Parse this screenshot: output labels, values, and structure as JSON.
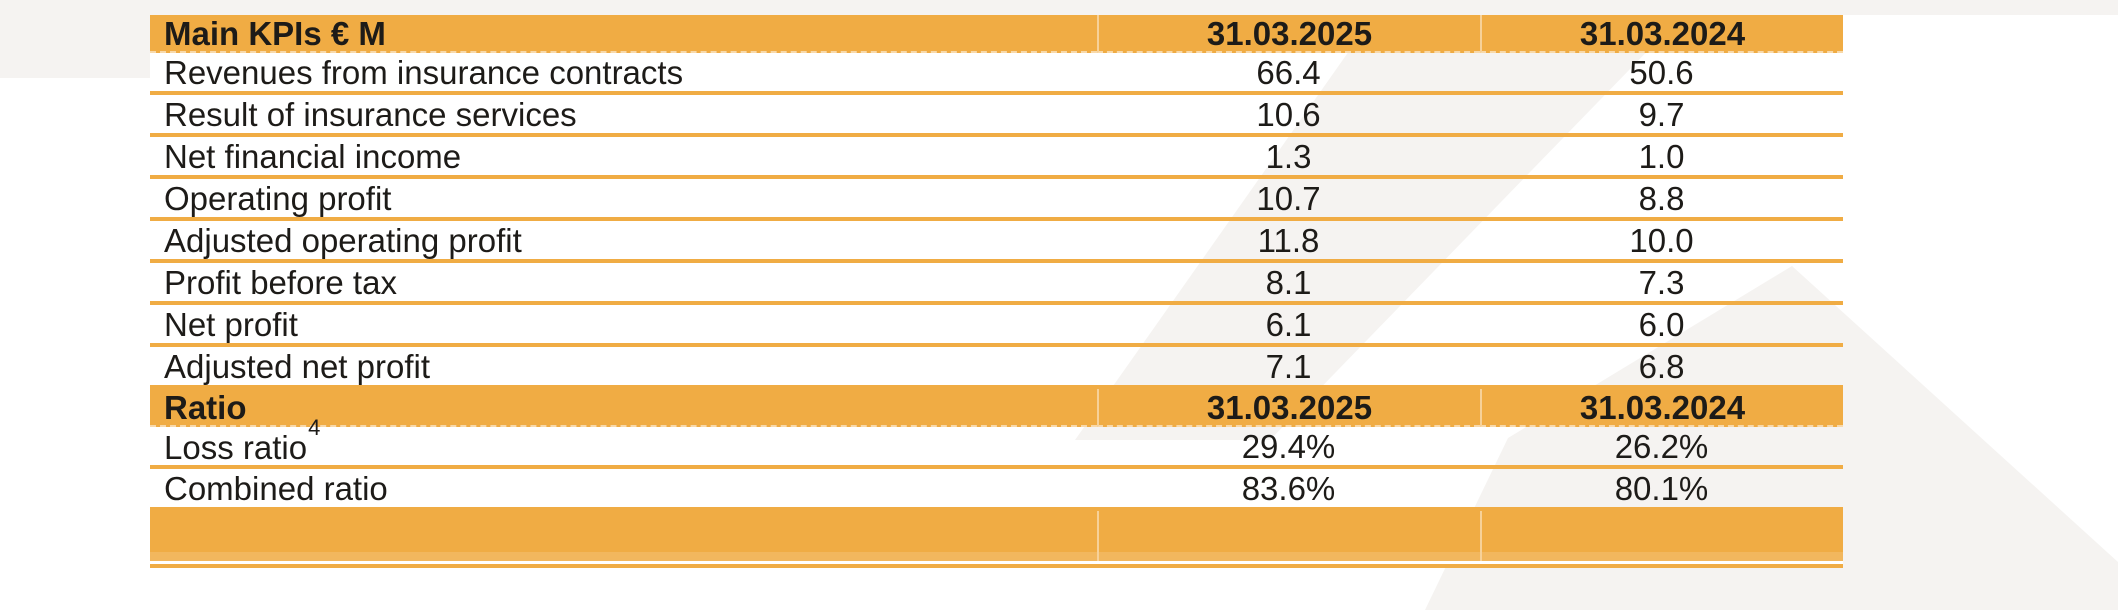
{
  "colors": {
    "orange": "#F0AC44",
    "text": "#1D1B18",
    "background_grey": "#F5F3F1",
    "white": "#FFFFFF"
  },
  "table": {
    "sections": [
      {
        "header": {
          "label": "Main KPIs € M",
          "col1": "31.03.2025",
          "col2": "31.03.2024"
        },
        "rows": [
          {
            "label": "Revenues from insurance contracts",
            "v1": "66.4",
            "v2": "50.6"
          },
          {
            "label": "Result of insurance services",
            "v1": "10.6",
            "v2": "9.7"
          },
          {
            "label": "Net financial income",
            "v1": "1.3",
            "v2": "1.0"
          },
          {
            "label": "Operating profit",
            "v1": "10.7",
            "v2": "8.8"
          },
          {
            "label": "Adjusted operating profit",
            "v1": "11.8",
            "v2": "10.0"
          },
          {
            "label": "Profit before tax",
            "v1": "8.1",
            "v2": "7.3"
          },
          {
            "label": "Net profit",
            "v1": "6.1",
            "v2": "6.0"
          },
          {
            "label": "Adjusted net profit",
            "v1": "7.1",
            "v2": "6.8"
          }
        ]
      },
      {
        "header": {
          "label": "Ratio",
          "col1": "31.03.2025",
          "col2": "31.03.2024"
        },
        "rows": [
          {
            "label": "Loss ratio",
            "sup": "4",
            "v1": "29.4%",
            "v2": "26.2%"
          },
          {
            "label": "Combined ratio",
            "v1": "83.6%",
            "v2": "80.1%"
          }
        ]
      }
    ]
  }
}
